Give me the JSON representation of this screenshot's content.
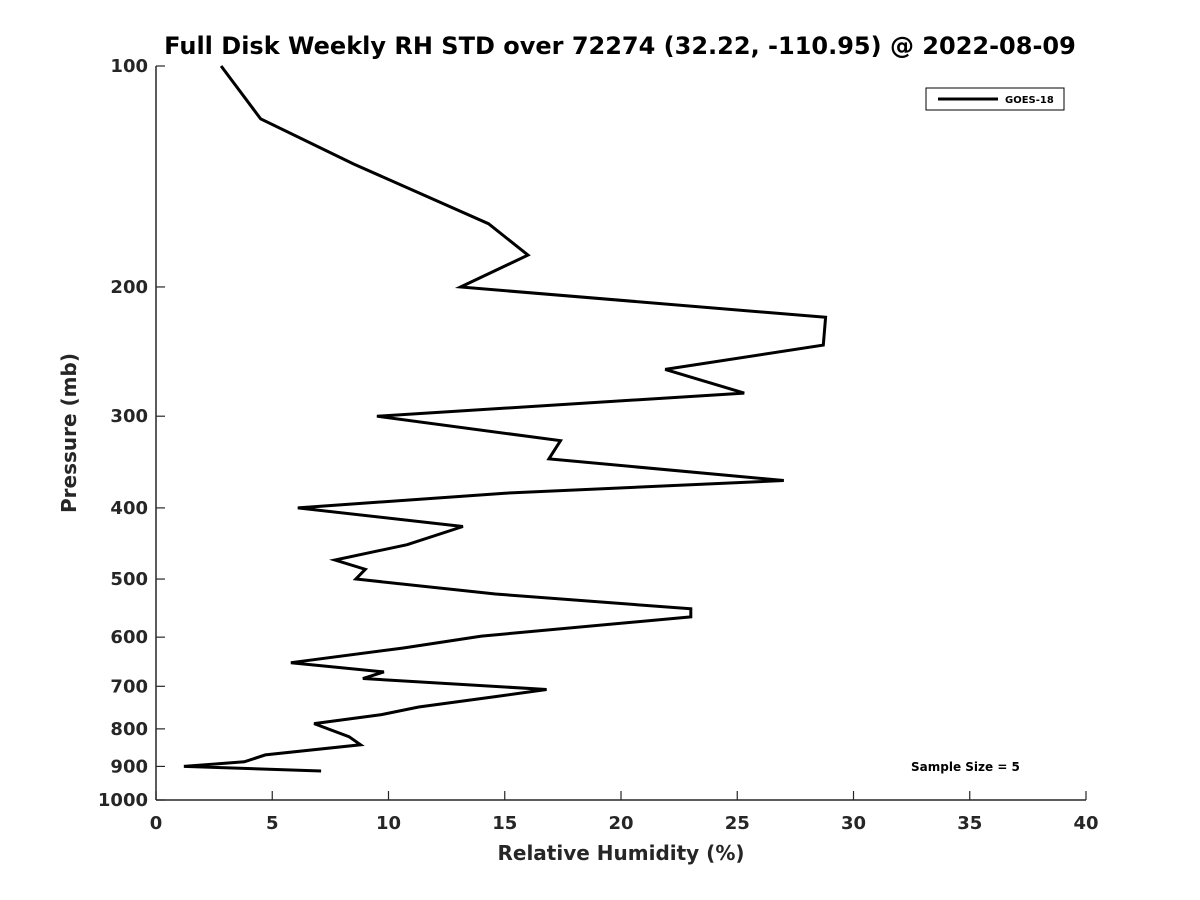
{
  "chart_data": {
    "type": "line",
    "title": "Full Disk Weekly RH STD over 72274 (32.22, -110.95) @ 2022-08-09",
    "xlabel": "Relative Humidity (%)",
    "ylabel": "Pressure (mb)",
    "xlim": [
      0,
      40
    ],
    "ylim": [
      1000,
      100
    ],
    "yscale": "log",
    "y_reversed": true,
    "xticks": [
      0,
      5,
      10,
      15,
      20,
      25,
      30,
      35,
      40
    ],
    "yticks": [
      100,
      200,
      300,
      400,
      500,
      600,
      700,
      800,
      900,
      1000
    ],
    "grid": false,
    "legend_position": "top-right",
    "annotation": "Sample Size = 5",
    "series": [
      {
        "name": "GOES-18",
        "color": "#000000",
        "points": [
          [
            2.8,
            100
          ],
          [
            4.5,
            118
          ],
          [
            8.5,
            136
          ],
          [
            14.3,
            164
          ],
          [
            16.0,
            181
          ],
          [
            13.1,
            200
          ],
          [
            28.8,
            220
          ],
          [
            28.7,
            240
          ],
          [
            21.9,
            259
          ],
          [
            25.3,
            279
          ],
          [
            9.5,
            300
          ],
          [
            17.4,
            324
          ],
          [
            16.9,
            343
          ],
          [
            27.0,
            367
          ],
          [
            15.0,
            382
          ],
          [
            6.1,
            400
          ],
          [
            13.2,
            424
          ],
          [
            10.8,
            449
          ],
          [
            7.7,
            471
          ],
          [
            9.0,
            485
          ],
          [
            8.6,
            500
          ],
          [
            14.6,
            524
          ],
          [
            23.0,
            549
          ],
          [
            23.0,
            563
          ],
          [
            14.0,
            598
          ],
          [
            10.6,
            621
          ],
          [
            5.8,
            650
          ],
          [
            9.8,
            669
          ],
          [
            8.9,
            683
          ],
          [
            16.8,
            707
          ],
          [
            14.6,
            723
          ],
          [
            11.3,
            747
          ],
          [
            9.7,
            765
          ],
          [
            6.8,
            787
          ],
          [
            8.3,
            820
          ],
          [
            8.8,
            841
          ],
          [
            4.7,
            868
          ],
          [
            3.8,
            887
          ],
          [
            1.2,
            900
          ],
          [
            7.1,
            913
          ]
        ]
      }
    ]
  }
}
